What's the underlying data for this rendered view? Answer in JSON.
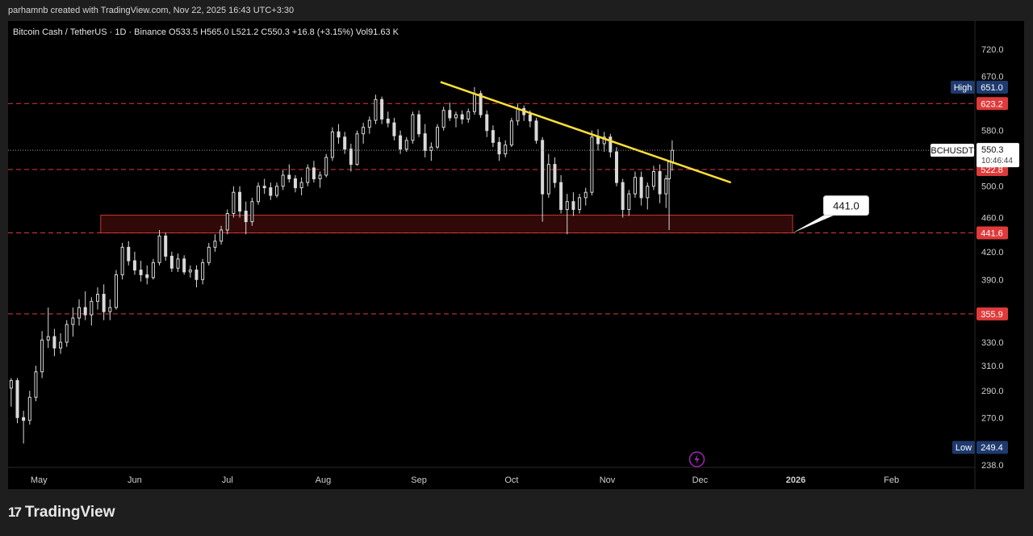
{
  "caption": "parhamnb created with TradingView.com, Nov 22, 2025 16:43 UTC+3:30",
  "footer": {
    "logo_text": "TradingView",
    "logo_mark": "17"
  },
  "colors": {
    "background": "#000000",
    "candle": "#d9d9d9",
    "level_line": "#e03a3a",
    "trendline": "#ffe135",
    "zone_border": "#c0392b",
    "zone_fill": "#3a0b0b",
    "label_red": "#e03a3a",
    "label_navy": "#1e3a6e",
    "bolt": "#9c27b0"
  },
  "chart_data": {
    "type": "candlestick",
    "title": "Bitcoin Cash / TetherUS · 1D · Binance",
    "ohlc_text": {
      "open": "O533.5",
      "high": "H565.0",
      "low": "L521.2",
      "close": "C550.3",
      "change": "+16.8 (+3.15%)",
      "volume": "Vol91.63 K"
    },
    "price_axis": {
      "ticks": [
        "720.0",
        "670.0",
        "580.0",
        "500.0",
        "460.0",
        "420.0",
        "390.0",
        "330.0",
        "310.0",
        "290.0",
        "270.0",
        "238.0"
      ],
      "scale": "log",
      "ylim": [
        238,
        760
      ]
    },
    "time_axis": {
      "ticks": [
        "May",
        "Jun",
        "Jul",
        "Aug",
        "Sep",
        "Oct",
        "Nov",
        "Dec",
        "2026",
        "Feb"
      ],
      "xlim": [
        "2025-04-21",
        "2026-02-28"
      ]
    },
    "levels": [
      {
        "label": "623.2",
        "price": 623.2
      },
      {
        "label": "522.8",
        "price": 522.8
      },
      {
        "label": "441.6",
        "price": 441.6
      },
      {
        "label": "355.9",
        "price": 355.9
      }
    ],
    "high_marker": {
      "label": "High",
      "value": "651.0",
      "price": 651.0
    },
    "low_marker": {
      "label": "Low",
      "value": "249.4",
      "price": 249.4
    },
    "current_price": {
      "symbol": "BCHUSDT",
      "value": "550.3",
      "countdown": "10:46:44",
      "price": 550.3
    },
    "zone": {
      "from": "2025-05-21",
      "to": "2025-12-31",
      "top": 463,
      "bottom": 441.6
    },
    "zone_callout": "441.0",
    "trendline": {
      "start": {
        "date": "2025-09-08",
        "price": 660
      },
      "end": {
        "date": "2025-12-11",
        "price": 505
      }
    },
    "candles": [
      {
        "t": "2025-04-22",
        "o": 292,
        "h": 300,
        "l": 278,
        "c": 298
      },
      {
        "t": "2025-04-24",
        "o": 298,
        "h": 300,
        "l": 266,
        "c": 270
      },
      {
        "t": "2025-04-26",
        "o": 270,
        "h": 275,
        "l": 252,
        "c": 268
      },
      {
        "t": "2025-04-28",
        "o": 268,
        "h": 290,
        "l": 265,
        "c": 285
      },
      {
        "t": "2025-04-30",
        "o": 285,
        "h": 310,
        "l": 282,
        "c": 305
      },
      {
        "t": "2025-05-02",
        "o": 305,
        "h": 340,
        "l": 300,
        "c": 332
      },
      {
        "t": "2025-05-04",
        "o": 332,
        "h": 362,
        "l": 325,
        "c": 335
      },
      {
        "t": "2025-05-06",
        "o": 335,
        "h": 342,
        "l": 318,
        "c": 325
      },
      {
        "t": "2025-05-08",
        "o": 325,
        "h": 338,
        "l": 320,
        "c": 330
      },
      {
        "t": "2025-05-10",
        "o": 330,
        "h": 350,
        "l": 326,
        "c": 346
      },
      {
        "t": "2025-05-12",
        "o": 346,
        "h": 362,
        "l": 335,
        "c": 352
      },
      {
        "t": "2025-05-14",
        "o": 352,
        "h": 370,
        "l": 345,
        "c": 362
      },
      {
        "t": "2025-05-16",
        "o": 362,
        "h": 378,
        "l": 350,
        "c": 355
      },
      {
        "t": "2025-05-18",
        "o": 355,
        "h": 372,
        "l": 345,
        "c": 368
      },
      {
        "t": "2025-05-20",
        "o": 368,
        "h": 382,
        "l": 360,
        "c": 375
      },
      {
        "t": "2025-05-22",
        "o": 375,
        "h": 385,
        "l": 350,
        "c": 358
      },
      {
        "t": "2025-05-24",
        "o": 358,
        "h": 370,
        "l": 350,
        "c": 362
      },
      {
        "t": "2025-05-26",
        "o": 362,
        "h": 400,
        "l": 360,
        "c": 395
      },
      {
        "t": "2025-05-28",
        "o": 395,
        "h": 430,
        "l": 390,
        "c": 425
      },
      {
        "t": "2025-05-30",
        "o": 425,
        "h": 432,
        "l": 405,
        "c": 410
      },
      {
        "t": "2025-06-01",
        "o": 410,
        "h": 420,
        "l": 395,
        "c": 400
      },
      {
        "t": "2025-06-03",
        "o": 400,
        "h": 410,
        "l": 388,
        "c": 395
      },
      {
        "t": "2025-06-05",
        "o": 395,
        "h": 405,
        "l": 385,
        "c": 392
      },
      {
        "t": "2025-06-07",
        "o": 392,
        "h": 412,
        "l": 390,
        "c": 408
      },
      {
        "t": "2025-06-09",
        "o": 408,
        "h": 445,
        "l": 405,
        "c": 438
      },
      {
        "t": "2025-06-11",
        "o": 438,
        "h": 442,
        "l": 410,
        "c": 415
      },
      {
        "t": "2025-06-13",
        "o": 415,
        "h": 420,
        "l": 398,
        "c": 402
      },
      {
        "t": "2025-06-15",
        "o": 402,
        "h": 418,
        "l": 398,
        "c": 412
      },
      {
        "t": "2025-06-17",
        "o": 412,
        "h": 416,
        "l": 395,
        "c": 398
      },
      {
        "t": "2025-06-19",
        "o": 398,
        "h": 405,
        "l": 392,
        "c": 400
      },
      {
        "t": "2025-06-21",
        "o": 400,
        "h": 405,
        "l": 382,
        "c": 390
      },
      {
        "t": "2025-06-23",
        "o": 390,
        "h": 412,
        "l": 385,
        "c": 408
      },
      {
        "t": "2025-06-25",
        "o": 408,
        "h": 430,
        "l": 405,
        "c": 425
      },
      {
        "t": "2025-06-27",
        "o": 425,
        "h": 440,
        "l": 420,
        "c": 432
      },
      {
        "t": "2025-06-29",
        "o": 432,
        "h": 450,
        "l": 428,
        "c": 445
      },
      {
        "t": "2025-07-01",
        "o": 445,
        "h": 470,
        "l": 440,
        "c": 465
      },
      {
        "t": "2025-07-03",
        "o": 465,
        "h": 500,
        "l": 460,
        "c": 492
      },
      {
        "t": "2025-07-05",
        "o": 492,
        "h": 500,
        "l": 460,
        "c": 468
      },
      {
        "t": "2025-07-07",
        "o": 468,
        "h": 480,
        "l": 440,
        "c": 455
      },
      {
        "t": "2025-07-09",
        "o": 455,
        "h": 485,
        "l": 450,
        "c": 480
      },
      {
        "t": "2025-07-11",
        "o": 480,
        "h": 505,
        "l": 476,
        "c": 500
      },
      {
        "t": "2025-07-13",
        "o": 500,
        "h": 510,
        "l": 490,
        "c": 498
      },
      {
        "t": "2025-07-15",
        "o": 498,
        "h": 505,
        "l": 482,
        "c": 488
      },
      {
        "t": "2025-07-17",
        "o": 488,
        "h": 505,
        "l": 485,
        "c": 500
      },
      {
        "t": "2025-07-19",
        "o": 500,
        "h": 522,
        "l": 495,
        "c": 515
      },
      {
        "t": "2025-07-21",
        "o": 515,
        "h": 530,
        "l": 505,
        "c": 510
      },
      {
        "t": "2025-07-23",
        "o": 510,
        "h": 515,
        "l": 492,
        "c": 498
      },
      {
        "t": "2025-07-25",
        "o": 498,
        "h": 512,
        "l": 488,
        "c": 505
      },
      {
        "t": "2025-07-27",
        "o": 505,
        "h": 530,
        "l": 500,
        "c": 525
      },
      {
        "t": "2025-07-29",
        "o": 525,
        "h": 535,
        "l": 505,
        "c": 510
      },
      {
        "t": "2025-07-31",
        "o": 510,
        "h": 520,
        "l": 498,
        "c": 515
      },
      {
        "t": "2025-08-02",
        "o": 515,
        "h": 545,
        "l": 512,
        "c": 540
      },
      {
        "t": "2025-08-04",
        "o": 540,
        "h": 585,
        "l": 535,
        "c": 578
      },
      {
        "t": "2025-08-06",
        "o": 578,
        "h": 590,
        "l": 560,
        "c": 570
      },
      {
        "t": "2025-08-08",
        "o": 570,
        "h": 578,
        "l": 545,
        "c": 552
      },
      {
        "t": "2025-08-10",
        "o": 552,
        "h": 560,
        "l": 520,
        "c": 530
      },
      {
        "t": "2025-08-12",
        "o": 530,
        "h": 580,
        "l": 528,
        "c": 575
      },
      {
        "t": "2025-08-14",
        "o": 575,
        "h": 592,
        "l": 560,
        "c": 585
      },
      {
        "t": "2025-08-16",
        "o": 585,
        "h": 602,
        "l": 575,
        "c": 596
      },
      {
        "t": "2025-08-18",
        "o": 596,
        "h": 638,
        "l": 590,
        "c": 630
      },
      {
        "t": "2025-08-20",
        "o": 630,
        "h": 635,
        "l": 590,
        "c": 598
      },
      {
        "t": "2025-08-22",
        "o": 598,
        "h": 610,
        "l": 585,
        "c": 592
      },
      {
        "t": "2025-08-24",
        "o": 592,
        "h": 600,
        "l": 565,
        "c": 572
      },
      {
        "t": "2025-08-26",
        "o": 572,
        "h": 580,
        "l": 545,
        "c": 552
      },
      {
        "t": "2025-08-28",
        "o": 552,
        "h": 570,
        "l": 548,
        "c": 565
      },
      {
        "t": "2025-08-30",
        "o": 565,
        "h": 610,
        "l": 560,
        "c": 605
      },
      {
        "t": "2025-09-01",
        "o": 605,
        "h": 612,
        "l": 570,
        "c": 575
      },
      {
        "t": "2025-09-03",
        "o": 575,
        "h": 590,
        "l": 540,
        "c": 550
      },
      {
        "t": "2025-09-05",
        "o": 550,
        "h": 562,
        "l": 535,
        "c": 555
      },
      {
        "t": "2025-09-07",
        "o": 555,
        "h": 590,
        "l": 552,
        "c": 585
      },
      {
        "t": "2025-09-09",
        "o": 585,
        "h": 618,
        "l": 580,
        "c": 612
      },
      {
        "t": "2025-09-11",
        "o": 612,
        "h": 625,
        "l": 595,
        "c": 600
      },
      {
        "t": "2025-09-13",
        "o": 600,
        "h": 610,
        "l": 585,
        "c": 605
      },
      {
        "t": "2025-09-15",
        "o": 605,
        "h": 612,
        "l": 590,
        "c": 598
      },
      {
        "t": "2025-09-17",
        "o": 598,
        "h": 615,
        "l": 592,
        "c": 610
      },
      {
        "t": "2025-09-19",
        "o": 610,
        "h": 651,
        "l": 605,
        "c": 640
      },
      {
        "t": "2025-09-21",
        "o": 640,
        "h": 645,
        "l": 600,
        "c": 605
      },
      {
        "t": "2025-09-23",
        "o": 605,
        "h": 612,
        "l": 570,
        "c": 580
      },
      {
        "t": "2025-09-25",
        "o": 580,
        "h": 588,
        "l": 555,
        "c": 562
      },
      {
        "t": "2025-09-27",
        "o": 562,
        "h": 570,
        "l": 535,
        "c": 545
      },
      {
        "t": "2025-09-29",
        "o": 545,
        "h": 565,
        "l": 540,
        "c": 558
      },
      {
        "t": "2025-10-01",
        "o": 558,
        "h": 600,
        "l": 555,
        "c": 595
      },
      {
        "t": "2025-10-03",
        "o": 595,
        "h": 622,
        "l": 588,
        "c": 615
      },
      {
        "t": "2025-10-05",
        "o": 615,
        "h": 620,
        "l": 595,
        "c": 605
      },
      {
        "t": "2025-10-07",
        "o": 605,
        "h": 612,
        "l": 585,
        "c": 595
      },
      {
        "t": "2025-10-09",
        "o": 595,
        "h": 600,
        "l": 560,
        "c": 565
      },
      {
        "t": "2025-10-11",
        "o": 565,
        "h": 570,
        "l": 455,
        "c": 490
      },
      {
        "t": "2025-10-13",
        "o": 490,
        "h": 545,
        "l": 485,
        "c": 530
      },
      {
        "t": "2025-10-15",
        "o": 530,
        "h": 540,
        "l": 498,
        "c": 505
      },
      {
        "t": "2025-10-17",
        "o": 505,
        "h": 515,
        "l": 465,
        "c": 470
      },
      {
        "t": "2025-10-19",
        "o": 470,
        "h": 490,
        "l": 440,
        "c": 480
      },
      {
        "t": "2025-10-21",
        "o": 480,
        "h": 492,
        "l": 462,
        "c": 470
      },
      {
        "t": "2025-10-23",
        "o": 470,
        "h": 490,
        "l": 465,
        "c": 485
      },
      {
        "t": "2025-10-25",
        "o": 485,
        "h": 498,
        "l": 475,
        "c": 492
      },
      {
        "t": "2025-10-27",
        "o": 492,
        "h": 580,
        "l": 488,
        "c": 570
      },
      {
        "t": "2025-10-29",
        "o": 570,
        "h": 582,
        "l": 550,
        "c": 560
      },
      {
        "t": "2025-10-31",
        "o": 560,
        "h": 578,
        "l": 548,
        "c": 570
      },
      {
        "t": "2025-11-02",
        "o": 570,
        "h": 575,
        "l": 540,
        "c": 548
      },
      {
        "t": "2025-11-04",
        "o": 548,
        "h": 555,
        "l": 500,
        "c": 505
      },
      {
        "t": "2025-11-06",
        "o": 505,
        "h": 510,
        "l": 460,
        "c": 470
      },
      {
        "t": "2025-11-08",
        "o": 470,
        "h": 495,
        "l": 462,
        "c": 490
      },
      {
        "t": "2025-11-10",
        "o": 490,
        "h": 520,
        "l": 485,
        "c": 512
      },
      {
        "t": "2025-11-12",
        "o": 512,
        "h": 520,
        "l": 475,
        "c": 485
      },
      {
        "t": "2025-11-14",
        "o": 485,
        "h": 505,
        "l": 470,
        "c": 500
      },
      {
        "t": "2025-11-16",
        "o": 500,
        "h": 528,
        "l": 495,
        "c": 520
      },
      {
        "t": "2025-11-18",
        "o": 520,
        "h": 530,
        "l": 478,
        "c": 490
      },
      {
        "t": "2025-11-20",
        "o": 490,
        "h": 515,
        "l": 472,
        "c": 510
      },
      {
        "t": "2025-11-21",
        "o": 510,
        "h": 535,
        "l": 445,
        "c": 533.5
      },
      {
        "t": "2025-11-22",
        "o": 533.5,
        "h": 565,
        "l": 521.2,
        "c": 550.3
      }
    ]
  }
}
